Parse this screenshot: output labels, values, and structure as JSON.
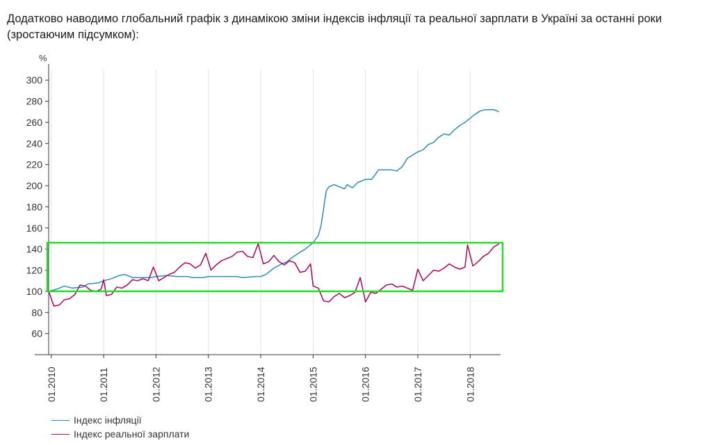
{
  "page": {
    "intro_line1": "Додатково наводимо глобальний графік з динамікою зміни індексів інфляції та реальної зарплати в Україні за останні роки",
    "intro_line2": "(зростаючим підсумком):"
  },
  "chart_data": {
    "type": "line",
    "ylabel": "%",
    "ylim": [
      40,
      310
    ],
    "xlim": [
      2009.95,
      2018.58
    ],
    "yticks": [
      60,
      80,
      100,
      120,
      140,
      160,
      180,
      200,
      220,
      240,
      260,
      280,
      300
    ],
    "xticks": [
      {
        "x": 2010.0,
        "label": "01.2010"
      },
      {
        "x": 2011.0,
        "label": "01.2011"
      },
      {
        "x": 2012.0,
        "label": "01.2012"
      },
      {
        "x": 2013.0,
        "label": "01.2013"
      },
      {
        "x": 2014.0,
        "label": "01.2014"
      },
      {
        "x": 2015.0,
        "label": "01.2015"
      },
      {
        "x": 2016.0,
        "label": "01.2016"
      },
      {
        "x": 2017.0,
        "label": "01.2017"
      },
      {
        "x": 2018.0,
        "label": "01.2018"
      }
    ],
    "grid": "vertical",
    "legend_position": "bottom-left",
    "highlight_box": {
      "y_from": 100,
      "y_to": 146,
      "color": "#22dd22"
    },
    "series": [
      {
        "name": "Індекс інфляції",
        "color": "#2b8cbe",
        "points": [
          [
            2009.95,
            100
          ],
          [
            2010.1,
            102
          ],
          [
            2010.25,
            105
          ],
          [
            2010.4,
            103
          ],
          [
            2010.6,
            104
          ],
          [
            2010.7,
            107
          ],
          [
            2010.9,
            108
          ],
          [
            2011.0,
            110
          ],
          [
            2011.15,
            112
          ],
          [
            2011.3,
            115
          ],
          [
            2011.4,
            116
          ],
          [
            2011.55,
            113
          ],
          [
            2011.7,
            113
          ],
          [
            2011.9,
            113
          ],
          [
            2012.0,
            114
          ],
          [
            2012.2,
            115
          ],
          [
            2012.4,
            114
          ],
          [
            2012.6,
            114
          ],
          [
            2012.7,
            113
          ],
          [
            2012.9,
            113
          ],
          [
            2013.0,
            114
          ],
          [
            2013.3,
            114
          ],
          [
            2013.55,
            114
          ],
          [
            2013.65,
            113
          ],
          [
            2013.9,
            114
          ],
          [
            2014.0,
            114
          ],
          [
            2014.1,
            116
          ],
          [
            2014.25,
            122
          ],
          [
            2014.4,
            126
          ],
          [
            2014.5,
            128
          ],
          [
            2014.6,
            132
          ],
          [
            2014.75,
            137
          ],
          [
            2014.85,
            140
          ],
          [
            2015.0,
            146
          ],
          [
            2015.1,
            153
          ],
          [
            2015.15,
            162
          ],
          [
            2015.2,
            178
          ],
          [
            2015.25,
            195
          ],
          [
            2015.3,
            199
          ],
          [
            2015.4,
            201
          ],
          [
            2015.5,
            199
          ],
          [
            2015.6,
            197
          ],
          [
            2015.65,
            201
          ],
          [
            2015.75,
            198
          ],
          [
            2015.85,
            203
          ],
          [
            2016.0,
            206
          ],
          [
            2016.12,
            206
          ],
          [
            2016.25,
            215
          ],
          [
            2016.5,
            215
          ],
          [
            2016.6,
            214
          ],
          [
            2016.7,
            218
          ],
          [
            2016.8,
            226
          ],
          [
            2016.9,
            229
          ],
          [
            2017.0,
            232
          ],
          [
            2017.1,
            234
          ],
          [
            2017.2,
            239
          ],
          [
            2017.3,
            241
          ],
          [
            2017.4,
            246
          ],
          [
            2017.5,
            249
          ],
          [
            2017.6,
            248
          ],
          [
            2017.7,
            253
          ],
          [
            2017.8,
            257
          ],
          [
            2017.9,
            260
          ],
          [
            2018.0,
            264
          ],
          [
            2018.1,
            268
          ],
          [
            2018.2,
            271
          ],
          [
            2018.3,
            272
          ],
          [
            2018.45,
            272
          ],
          [
            2018.55,
            270
          ]
        ]
      },
      {
        "name": "Індекс реальної зарплати",
        "color": "#b3005e",
        "points": [
          [
            2009.95,
            100
          ],
          [
            2010.05,
            86
          ],
          [
            2010.15,
            87
          ],
          [
            2010.25,
            92
          ],
          [
            2010.35,
            93
          ],
          [
            2010.45,
            97
          ],
          [
            2010.55,
            106
          ],
          [
            2010.65,
            105
          ],
          [
            2010.75,
            101
          ],
          [
            2010.85,
            100
          ],
          [
            2010.95,
            102
          ],
          [
            2011.0,
            111
          ],
          [
            2011.05,
            96
          ],
          [
            2011.15,
            97
          ],
          [
            2011.25,
            104
          ],
          [
            2011.35,
            103
          ],
          [
            2011.45,
            106
          ],
          [
            2011.55,
            111
          ],
          [
            2011.65,
            110
          ],
          [
            2011.75,
            112
          ],
          [
            2011.85,
            110
          ],
          [
            2011.95,
            123
          ],
          [
            2012.05,
            110
          ],
          [
            2012.15,
            113
          ],
          [
            2012.25,
            116
          ],
          [
            2012.35,
            118
          ],
          [
            2012.45,
            123
          ],
          [
            2012.55,
            127
          ],
          [
            2012.65,
            126
          ],
          [
            2012.75,
            122
          ],
          [
            2012.85,
            125
          ],
          [
            2012.95,
            136
          ],
          [
            2013.05,
            120
          ],
          [
            2013.15,
            125
          ],
          [
            2013.25,
            129
          ],
          [
            2013.35,
            131
          ],
          [
            2013.45,
            133
          ],
          [
            2013.55,
            137
          ],
          [
            2013.65,
            138
          ],
          [
            2013.75,
            133
          ],
          [
            2013.85,
            132
          ],
          [
            2013.95,
            145
          ],
          [
            2014.05,
            126
          ],
          [
            2014.15,
            128
          ],
          [
            2014.25,
            134
          ],
          [
            2014.35,
            128
          ],
          [
            2014.45,
            125
          ],
          [
            2014.55,
            129
          ],
          [
            2014.65,
            127
          ],
          [
            2014.75,
            118
          ],
          [
            2014.85,
            119
          ],
          [
            2014.95,
            126
          ],
          [
            2015.0,
            105
          ],
          [
            2015.1,
            103
          ],
          [
            2015.2,
            91
          ],
          [
            2015.3,
            90
          ],
          [
            2015.4,
            95
          ],
          [
            2015.5,
            98
          ],
          [
            2015.6,
            94
          ],
          [
            2015.7,
            96
          ],
          [
            2015.8,
            99
          ],
          [
            2015.9,
            113
          ],
          [
            2016.0,
            90
          ],
          [
            2016.1,
            99
          ],
          [
            2016.2,
            98
          ],
          [
            2016.3,
            102
          ],
          [
            2016.4,
            106
          ],
          [
            2016.5,
            107
          ],
          [
            2016.6,
            104
          ],
          [
            2016.7,
            105
          ],
          [
            2016.8,
            103
          ],
          [
            2016.9,
            101
          ],
          [
            2017.0,
            121
          ],
          [
            2017.1,
            110
          ],
          [
            2017.2,
            115
          ],
          [
            2017.3,
            120
          ],
          [
            2017.4,
            119
          ],
          [
            2017.5,
            122
          ],
          [
            2017.6,
            126
          ],
          [
            2017.7,
            123
          ],
          [
            2017.8,
            121
          ],
          [
            2017.9,
            123
          ],
          [
            2017.95,
            144
          ],
          [
            2018.05,
            124
          ],
          [
            2018.15,
            128
          ],
          [
            2018.25,
            133
          ],
          [
            2018.35,
            136
          ],
          [
            2018.45,
            142
          ],
          [
            2018.55,
            145
          ]
        ]
      }
    ]
  }
}
